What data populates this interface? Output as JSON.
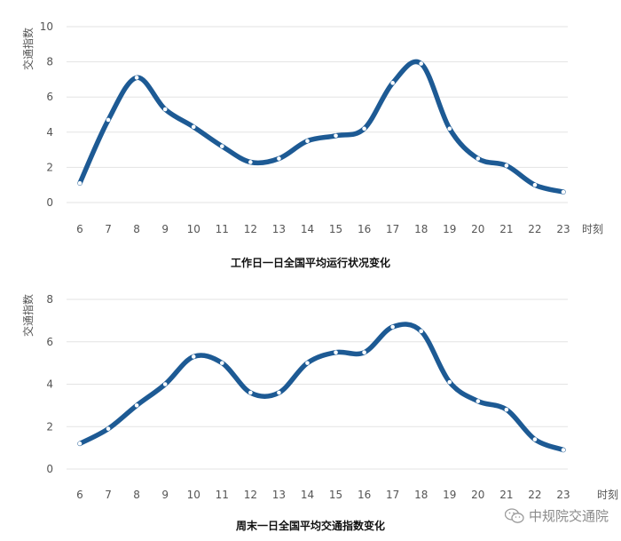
{
  "chart_data": [
    {
      "type": "line",
      "title": "工作日一日全国平均运行状况变化",
      "ylabel": "交通指数",
      "xunit": "时刻",
      "x": [
        6,
        7,
        8,
        9,
        10,
        11,
        12,
        13,
        14,
        15,
        16,
        17,
        18,
        19,
        20,
        21,
        22,
        23
      ],
      "categories": [
        "6",
        "7",
        "8",
        "9",
        "10",
        "11",
        "12",
        "13",
        "14",
        "15",
        "16",
        "17",
        "18",
        "19",
        "20",
        "21",
        "22",
        "23"
      ],
      "yticks": [
        "0",
        "2",
        "4",
        "6",
        "8",
        "10"
      ],
      "ylim": [
        0,
        10
      ],
      "grid": true,
      "color": "#1d5a94",
      "series": [
        {
          "values": [
            1.1,
            4.7,
            7.1,
            5.3,
            4.3,
            3.2,
            2.3,
            2.5,
            3.5,
            3.8,
            4.2,
            6.8,
            7.9,
            4.2,
            2.5,
            2.1,
            1.0,
            0.6
          ]
        }
      ]
    },
    {
      "type": "line",
      "title": "周末一日全国平均交通指数变化",
      "ylabel": "交通指数",
      "xunit": "时刻",
      "x": [
        6,
        7,
        8,
        9,
        10,
        11,
        12,
        13,
        14,
        15,
        16,
        17,
        18,
        19,
        20,
        21,
        22,
        23
      ],
      "categories": [
        "6",
        "7",
        "8",
        "9",
        "10",
        "11",
        "12",
        "13",
        "14",
        "15",
        "16",
        "17",
        "18",
        "19",
        "20",
        "21",
        "22",
        "23"
      ],
      "yticks": [
        "0",
        "2",
        "4",
        "6",
        "8"
      ],
      "ylim": [
        0,
        8
      ],
      "grid": true,
      "color": "#1d5a94",
      "series": [
        {
          "values": [
            1.2,
            1.9,
            3.0,
            4.0,
            5.3,
            5.0,
            3.6,
            3.6,
            5.0,
            5.5,
            5.5,
            6.7,
            6.5,
            4.1,
            3.2,
            2.8,
            1.4,
            0.9
          ]
        }
      ]
    }
  ],
  "watermark": {
    "text": "中规院交通院",
    "icon": "wechat-icon"
  }
}
